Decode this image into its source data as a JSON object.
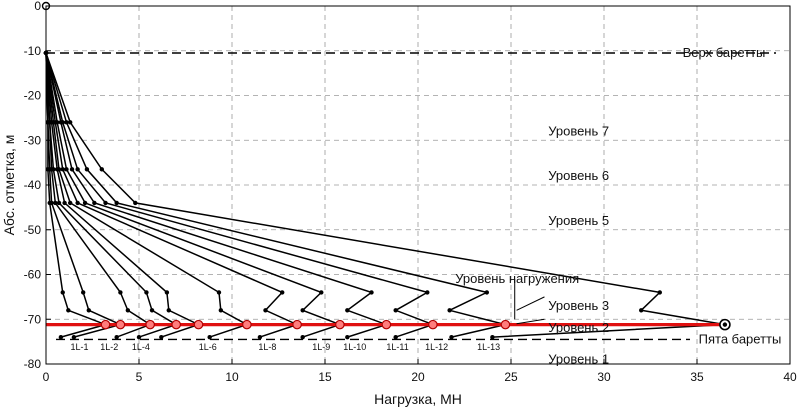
{
  "chart_data": {
    "type": "line",
    "xlabel": "Нагрузка, МН",
    "ylabel": "Абс. отметка, м",
    "xlim": [
      0,
      40
    ],
    "ylim": [
      -80,
      0
    ],
    "xticks": [
      0,
      5,
      10,
      15,
      20,
      25,
      30,
      35,
      40
    ],
    "yticks": [
      0,
      -10,
      -20,
      -30,
      -40,
      -50,
      -60,
      -70,
      -80
    ],
    "grid": true,
    "reference_lines": [
      {
        "label": "Верх баретты",
        "y": -10.5
      },
      {
        "label": "Пята баретты",
        "y": -74.5
      }
    ],
    "level_labels": [
      {
        "label": "Уровень 7",
        "x": 27,
        "y": -28
      },
      {
        "label": "Уровень 6",
        "x": 27,
        "y": -38
      },
      {
        "label": "Уровень 5",
        "x": 27,
        "y": -48
      },
      {
        "label": "Уровень нагружения",
        "x": 22,
        "y": -61
      },
      {
        "label": "Уровень 3",
        "x": 27,
        "y": -67
      },
      {
        "label": "Уровень 2",
        "x": 27,
        "y": -72
      },
      {
        "label": "Уровень 1",
        "x": 27,
        "y": -79
      }
    ],
    "load_step_labels": [
      "1L-1",
      "1L-2",
      "1L-4",
      "1L-6",
      "1L-8",
      "1L-9",
      "1L-10",
      "1L-11",
      "1L-12",
      "1L-13"
    ],
    "series": [
      {
        "values": [
          [
            0.0,
            -10.5
          ],
          [
            0.1,
            -26
          ],
          [
            0.1,
            -36.5
          ],
          [
            0.2,
            -44
          ],
          [
            0.9,
            -64
          ],
          [
            1.2,
            -68
          ],
          [
            3.2,
            -71.2
          ],
          [
            0.8,
            -74
          ]
        ]
      },
      {
        "values": [
          [
            0.0,
            -10.5
          ],
          [
            0.1,
            -26
          ],
          [
            0.2,
            -36.5
          ],
          [
            0.3,
            -44
          ],
          [
            2.0,
            -64
          ],
          [
            2.3,
            -68
          ],
          [
            4.0,
            -71.2
          ],
          [
            1.5,
            -74
          ]
        ]
      },
      {
        "values": [
          [
            0.0,
            -10.5
          ],
          [
            0.2,
            -26
          ],
          [
            0.3,
            -36.5
          ],
          [
            0.5,
            -44
          ],
          [
            4.0,
            -64
          ],
          [
            4.4,
            -68
          ],
          [
            5.6,
            -71.2
          ],
          [
            3.8,
            -74
          ]
        ]
      },
      {
        "values": [
          [
            0.0,
            -10.5
          ],
          [
            0.2,
            -26
          ],
          [
            0.4,
            -36.5
          ],
          [
            0.7,
            -44
          ],
          [
            5.4,
            -64
          ],
          [
            5.7,
            -68
          ],
          [
            7.0,
            -71.2
          ],
          [
            5.0,
            -74
          ]
        ]
      },
      {
        "values": [
          [
            0.0,
            -10.5
          ],
          [
            0.3,
            -26
          ],
          [
            0.6,
            -36.5
          ],
          [
            1.0,
            -44
          ],
          [
            6.5,
            -64
          ],
          [
            6.6,
            -68
          ],
          [
            8.2,
            -71.2
          ],
          [
            6.2,
            -74
          ]
        ]
      },
      {
        "values": [
          [
            0.0,
            -10.5
          ],
          [
            0.4,
            -26
          ],
          [
            0.7,
            -36.5
          ],
          [
            1.3,
            -44
          ],
          [
            9.3,
            -64
          ],
          [
            9.4,
            -68
          ],
          [
            10.8,
            -71.2
          ],
          [
            8.8,
            -74
          ]
        ]
      },
      {
        "values": [
          [
            0.0,
            -10.5
          ],
          [
            0.5,
            -26
          ],
          [
            0.9,
            -36.5
          ],
          [
            1.7,
            -44
          ],
          [
            12.7,
            -64
          ],
          [
            11.8,
            -68
          ],
          [
            13.5,
            -71.2
          ],
          [
            11.5,
            -74
          ]
        ]
      },
      {
        "values": [
          [
            0.0,
            -10.5
          ],
          [
            0.6,
            -26
          ],
          [
            1.1,
            -36.5
          ],
          [
            2.1,
            -44
          ],
          [
            14.8,
            -64
          ],
          [
            13.8,
            -68
          ],
          [
            15.8,
            -71.2
          ],
          [
            13.8,
            -74
          ]
        ]
      },
      {
        "values": [
          [
            0.0,
            -10.5
          ],
          [
            0.8,
            -26
          ],
          [
            1.4,
            -36.5
          ],
          [
            2.6,
            -44
          ],
          [
            17.5,
            -64
          ],
          [
            16.2,
            -68
          ],
          [
            18.3,
            -71.2
          ],
          [
            16.2,
            -74
          ]
        ]
      },
      {
        "values": [
          [
            0.0,
            -10.5
          ],
          [
            0.9,
            -26
          ],
          [
            1.7,
            -36.5
          ],
          [
            3.2,
            -44
          ],
          [
            20.5,
            -64
          ],
          [
            18.8,
            -68
          ],
          [
            20.8,
            -71.2
          ],
          [
            18.8,
            -74
          ]
        ]
      },
      {
        "values": [
          [
            0.0,
            -10.5
          ],
          [
            1.1,
            -26
          ],
          [
            2.2,
            -36.5
          ],
          [
            3.8,
            -44
          ],
          [
            23.7,
            -64
          ],
          [
            21.7,
            -68
          ],
          [
            24.7,
            -71.2
          ],
          [
            21.8,
            -74
          ]
        ]
      },
      {
        "values": [
          [
            0.0,
            -10.5
          ],
          [
            1.3,
            -26
          ],
          [
            3.0,
            -36.5
          ],
          [
            4.8,
            -44
          ],
          [
            33.0,
            -64
          ],
          [
            32.0,
            -68
          ],
          [
            36.5,
            -71.2
          ],
          [
            24.0,
            -74
          ]
        ]
      }
    ],
    "highlight_line": {
      "from": [
        0,
        -71.2
      ],
      "to": [
        36.5,
        -71.2
      ]
    }
  }
}
